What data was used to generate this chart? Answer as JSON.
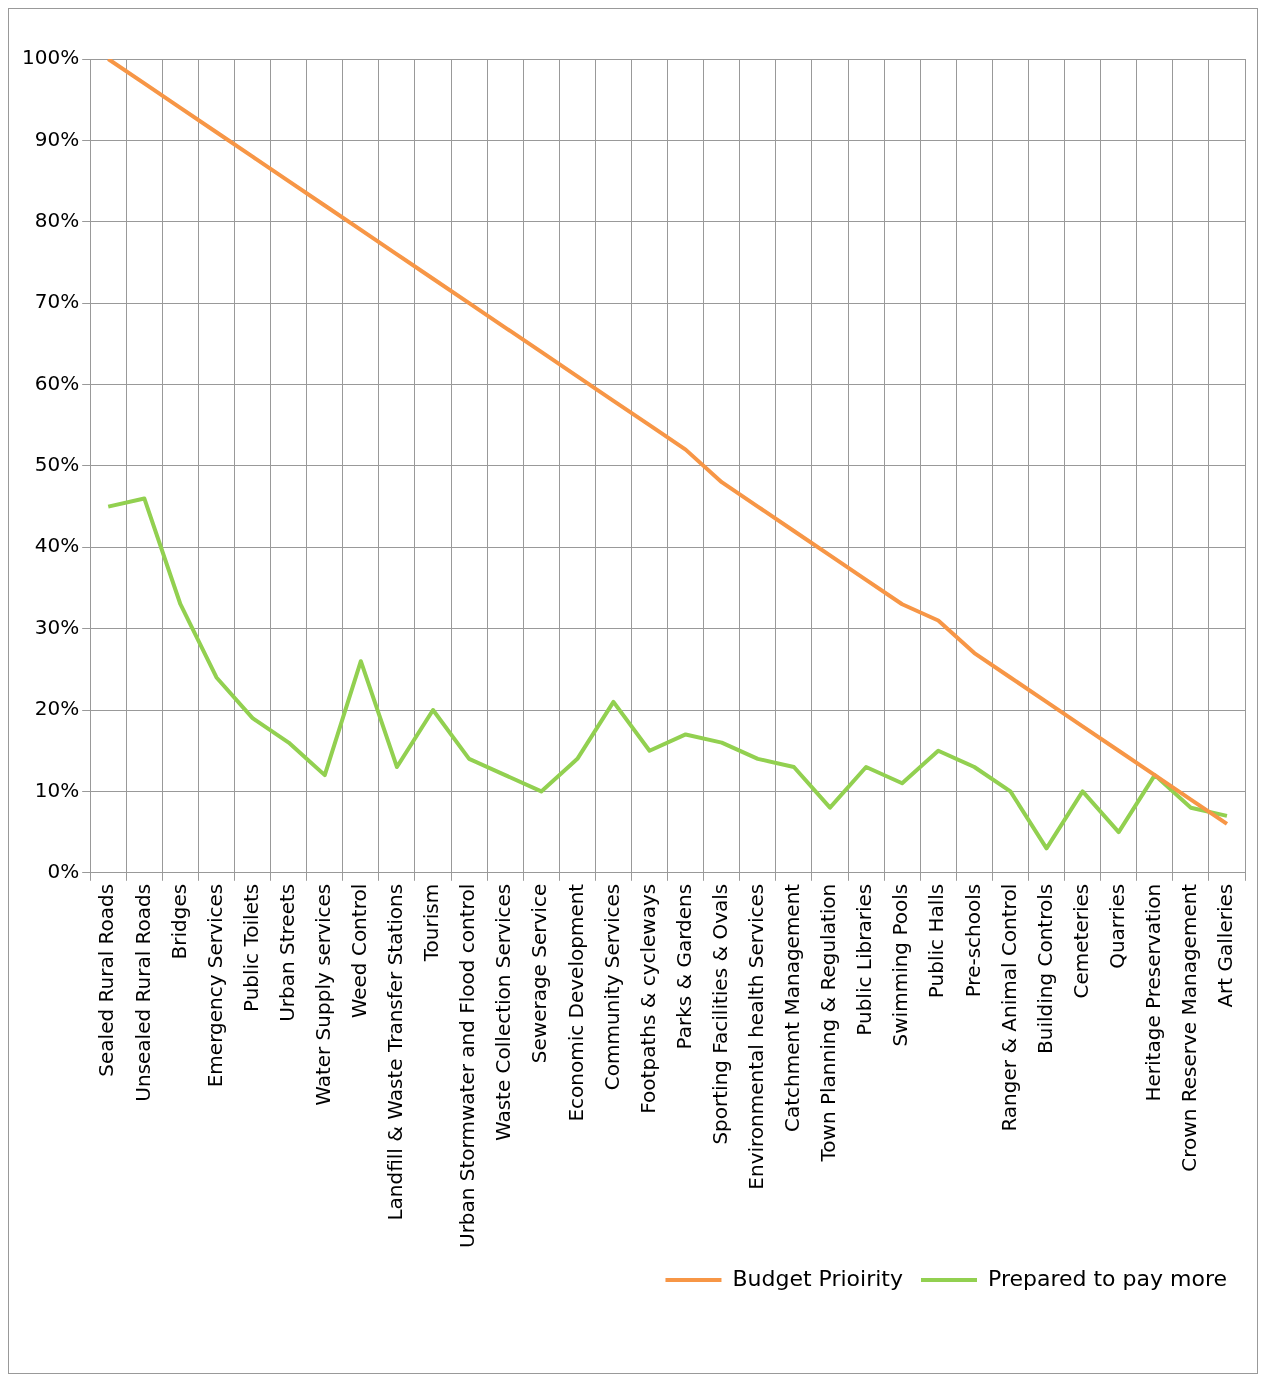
{
  "chart_data": {
    "type": "line",
    "categories": [
      "Sealed Rural Roads",
      "Unsealed Rural Roads",
      "Bridges",
      "Emergency Services",
      "Public Toilets",
      "Urban Streets",
      "Water Supply services",
      "Weed Control",
      "Landfill & Waste Transfer Stations",
      "Tourism",
      "Urban Stormwater and Flood control",
      "Waste Collection Services",
      "Sewerage Service",
      "Economic Development",
      "Community Services",
      "Footpaths & cycleways",
      "Parks & Gardens",
      "Sporting Facilities & Ovals",
      "Environmental health Services",
      "Catchment Management",
      "Town Planning & Regulation",
      "Public Libraries",
      "Swimming Pools",
      "Public Halls",
      "Pre-schools",
      "Ranger & Animal Control",
      "Building Controls",
      "Cemeteries",
      "Quarries",
      "Heritage Preservation",
      "Crown Reserve Management",
      "Art Galleries"
    ],
    "series": [
      {
        "name": "Budget Prioirity",
        "color": "#f79646",
        "values": [
          100,
          97,
          94,
          91,
          88,
          85,
          82,
          79,
          76,
          73,
          70,
          67,
          64,
          61,
          58,
          55,
          52,
          48,
          45,
          42,
          39,
          36,
          33,
          31,
          27,
          24,
          21,
          18,
          15,
          12,
          9,
          6
        ]
      },
      {
        "name": "Prepared to pay more",
        "color": "#92d050",
        "values": [
          45,
          46,
          33,
          24,
          19,
          16,
          12,
          26,
          13,
          20,
          14,
          12,
          10,
          14,
          21,
          15,
          17,
          16,
          14,
          13,
          8,
          13,
          11,
          15,
          13,
          10,
          3,
          10,
          5,
          12,
          8,
          7
        ]
      }
    ],
    "ylim": [
      0,
      100
    ],
    "yticks": [
      {
        "value": 0,
        "label": "0%"
      },
      {
        "value": 10,
        "label": "10%"
      },
      {
        "value": 20,
        "label": "20%"
      },
      {
        "value": 30,
        "label": "30%"
      },
      {
        "value": 40,
        "label": "40%"
      },
      {
        "value": 50,
        "label": "50%"
      },
      {
        "value": 60,
        "label": "60%"
      },
      {
        "value": 70,
        "label": "70%"
      },
      {
        "value": 80,
        "label": "80%"
      },
      {
        "value": 90,
        "label": "90%"
      },
      {
        "value": 100,
        "label": "100%"
      }
    ],
    "grid": true,
    "legend": "bottom right",
    "marker": "none",
    "line_style": "solid"
  }
}
